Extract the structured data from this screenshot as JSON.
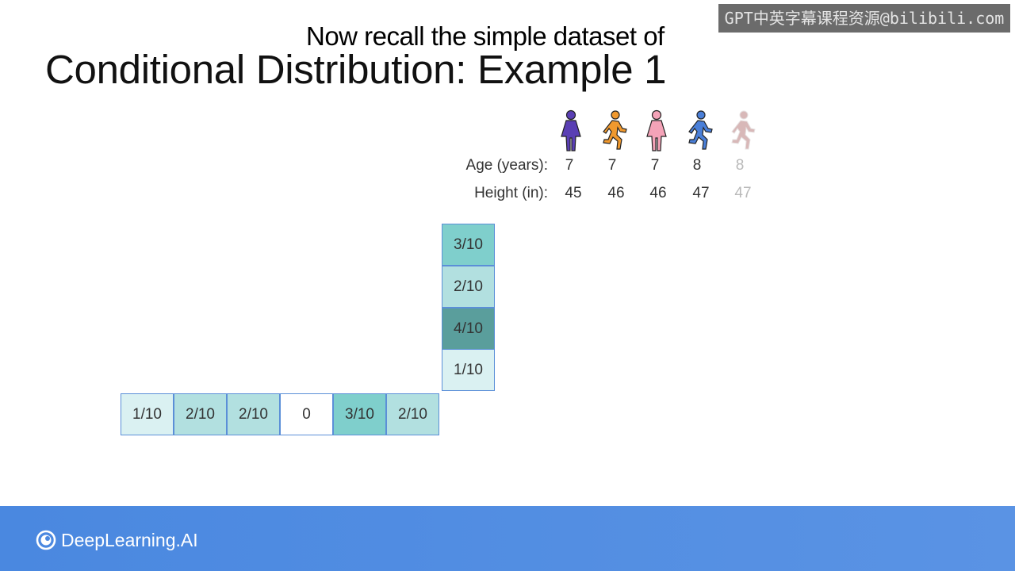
{
  "watermark": "GPT中英字幕课程资源@bilibili.com",
  "subtitle": "Now recall the simple dataset of",
  "title": "Conditional Distribution: Example 1",
  "people": {
    "figures": [
      {
        "icon": "girl-purple-icon",
        "color": "#5a3fb4"
      },
      {
        "icon": "boy-running-orange-icon",
        "color": "#f0992e"
      },
      {
        "icon": "girl-pink-icon",
        "color": "#f4a3b8"
      },
      {
        "icon": "boy-running-blue-icon",
        "color": "#4a7fd8"
      },
      {
        "icon": "boy-running-faded-icon",
        "color": "#d8b8b8"
      }
    ],
    "age_label": "Age (years):",
    "height_label": "Height (in):",
    "ages": [
      "7",
      "7",
      "7",
      "8",
      "8"
    ],
    "heights": [
      "45",
      "46",
      "46",
      "47",
      "47"
    ]
  },
  "column_cells": [
    {
      "label": "3/10",
      "color": "#7fcfcc"
    },
    {
      "label": "2/10",
      "color": "#b2e0e0"
    },
    {
      "label": "4/10",
      "color": "#5a9e9c"
    },
    {
      "label": "1/10",
      "color": "#daf1f2"
    }
  ],
  "row_cells": [
    {
      "label": "1/10",
      "color": "#daf1f2"
    },
    {
      "label": "2/10",
      "color": "#b2e0e0"
    },
    {
      "label": "2/10",
      "color": "#b2e0e0"
    },
    {
      "label": "0",
      "color": "#ffffff"
    },
    {
      "label": "3/10",
      "color": "#7fcfcc"
    },
    {
      "label": "2/10",
      "color": "#b2e0e0"
    }
  ],
  "footer": {
    "brand": "DeepLearning.AI",
    "logo_icon": "deeplearning-logo-icon"
  }
}
